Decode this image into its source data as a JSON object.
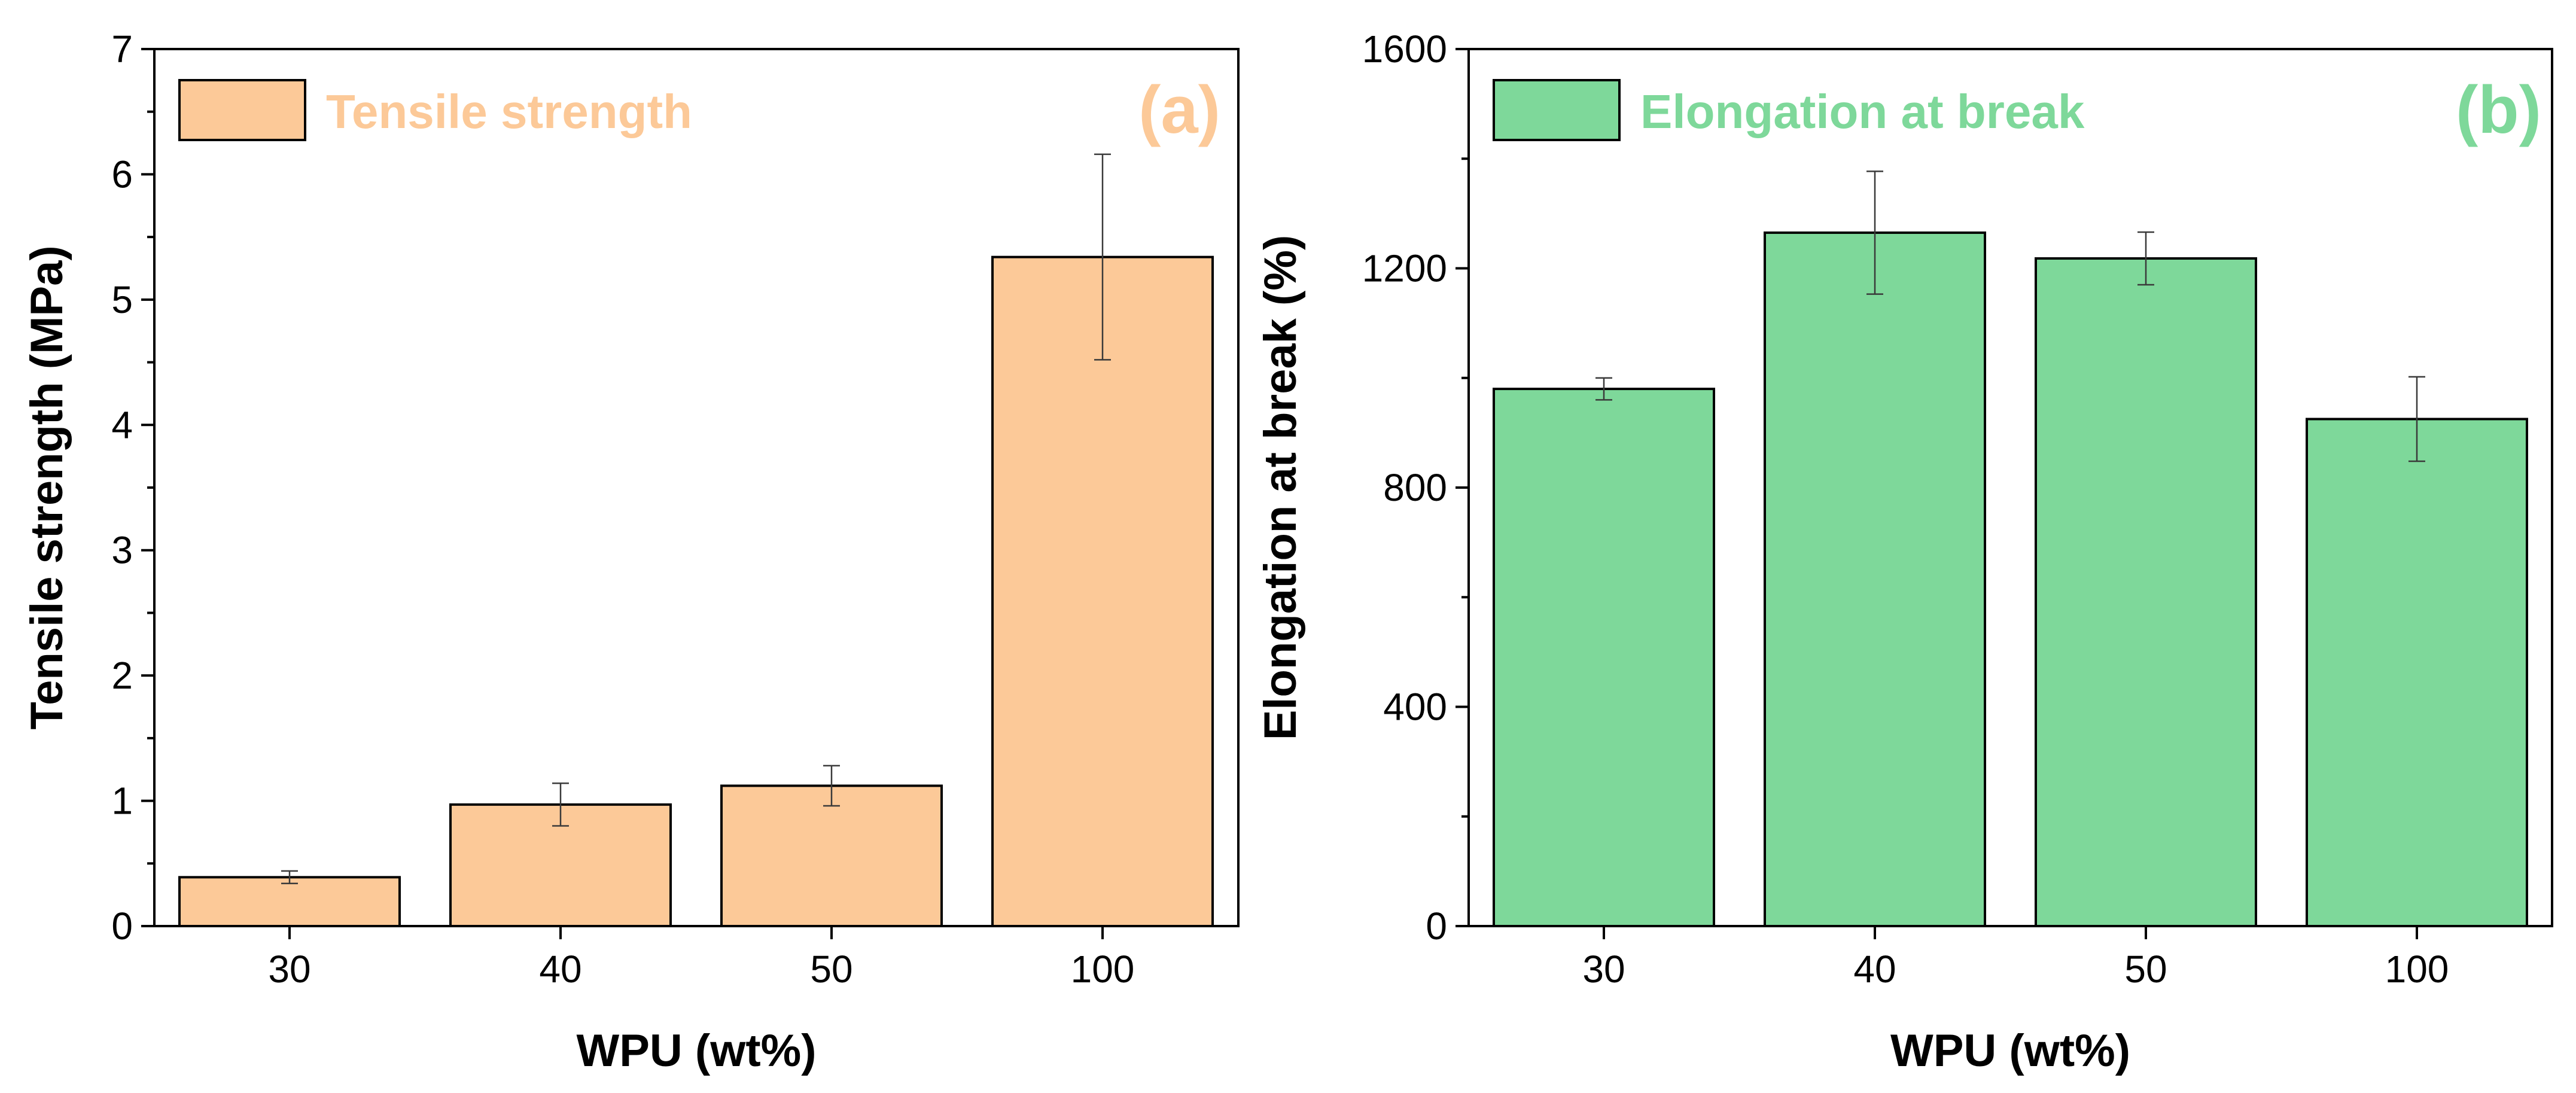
{
  "chart_data": [
    {
      "type": "bar",
      "panel_label": "(a)",
      "categories": [
        "30",
        "40",
        "50",
        "100"
      ],
      "series": [
        {
          "name": "Tensile strength",
          "values": [
            0.39,
            0.97,
            1.12,
            5.34
          ],
          "errors": [
            0.05,
            0.17,
            0.16,
            0.82
          ]
        }
      ],
      "xlabel": "WPU (wt%)",
      "ylabel": "Tensile strength (MPa)",
      "ylim": [
        0,
        7
      ],
      "yticks": [
        0,
        1,
        2,
        3,
        4,
        5,
        6,
        7
      ],
      "ytick_labels": [
        "0",
        "1",
        "2",
        "3",
        "4",
        "5",
        "6",
        "7"
      ],
      "grid": false,
      "legend_position": "top-left",
      "color": "#FCC998",
      "label_color": "#FCC998"
    },
    {
      "type": "bar",
      "panel_label": "(b)",
      "categories": [
        "30",
        "40",
        "50",
        "100"
      ],
      "series": [
        {
          "name": "Elongation at break",
          "values": [
            980,
            1265,
            1218,
            925
          ],
          "errors": [
            20,
            112,
            48,
            77
          ]
        }
      ],
      "xlabel": "WPU (wt%)",
      "ylabel": "Elongation at break (%)",
      "ylim": [
        0,
        1600
      ],
      "yticks": [
        0,
        400,
        800,
        1200,
        1600
      ],
      "ytick_labels": [
        "0",
        "400",
        "800",
        "1200",
        "1600"
      ],
      "grid": false,
      "legend_position": "top-left",
      "color": "#7ED89A",
      "label_color": "#7ED89A"
    }
  ]
}
